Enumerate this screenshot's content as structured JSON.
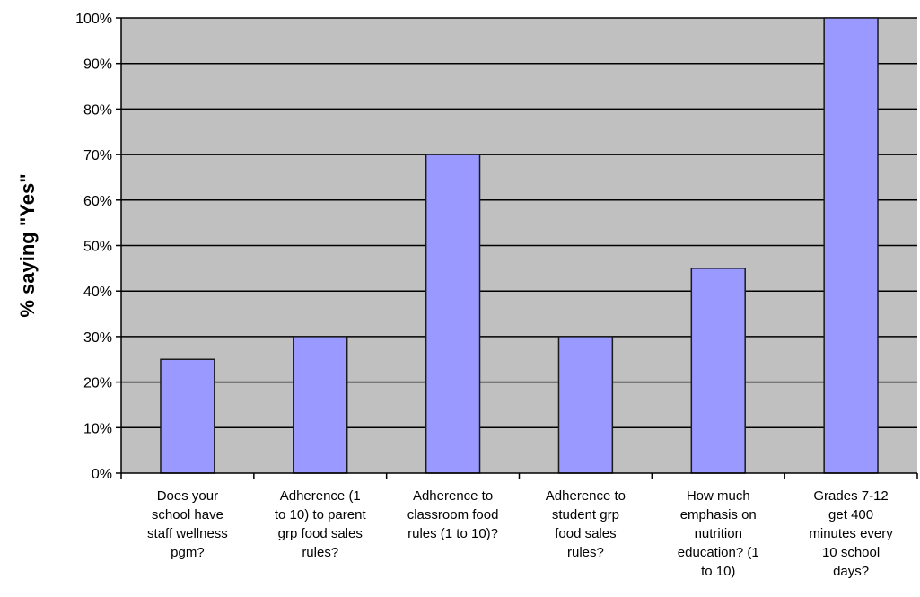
{
  "chart_data": {
    "type": "bar",
    "title": "",
    "xlabel": "",
    "ylabel": "% saying \"Yes\"",
    "ylim": [
      0,
      100
    ],
    "yticks": [
      0,
      10,
      20,
      30,
      40,
      50,
      60,
      70,
      80,
      90,
      100
    ],
    "ytick_labels": [
      "0%",
      "10%",
      "20%",
      "30%",
      "40%",
      "50%",
      "60%",
      "70%",
      "80%",
      "90%",
      "100%"
    ],
    "grid": true,
    "legend": "none",
    "categories": [
      "Does your school have staff wellness pgm?",
      "Adherence (1 to 10) to parent grp food sales rules?",
      "Adherence to classroom food rules (1 to 10)?",
      "Adherence to student grp food sales rules?",
      "How much emphasis on nutrition education? (1 to 10)",
      "Grades 7-12 get 400 minutes every 10 school days?"
    ],
    "category_lines": [
      [
        "Does your",
        "school have",
        "staff wellness",
        "pgm?"
      ],
      [
        "Adherence (1",
        "to 10) to parent",
        "grp food sales",
        "rules?"
      ],
      [
        "Adherence to",
        "classroom food",
        "rules (1 to 10)?"
      ],
      [
        "Adherence to",
        "student grp",
        "food sales",
        "rules?"
      ],
      [
        "How much",
        "emphasis on",
        "nutrition",
        "education? (1",
        "to 10)"
      ],
      [
        "Grades 7-12",
        "get 400",
        "minutes every",
        "10 school",
        "days?"
      ]
    ],
    "values": [
      25,
      30,
      70,
      30,
      45,
      100
    ],
    "colors": {
      "plot_bg": "#c0c0c0",
      "bar_fill": "#9999ff",
      "bar_stroke": "#1a1a1a",
      "grid": "#000000",
      "axis": "#000000",
      "text": "#000000"
    }
  }
}
